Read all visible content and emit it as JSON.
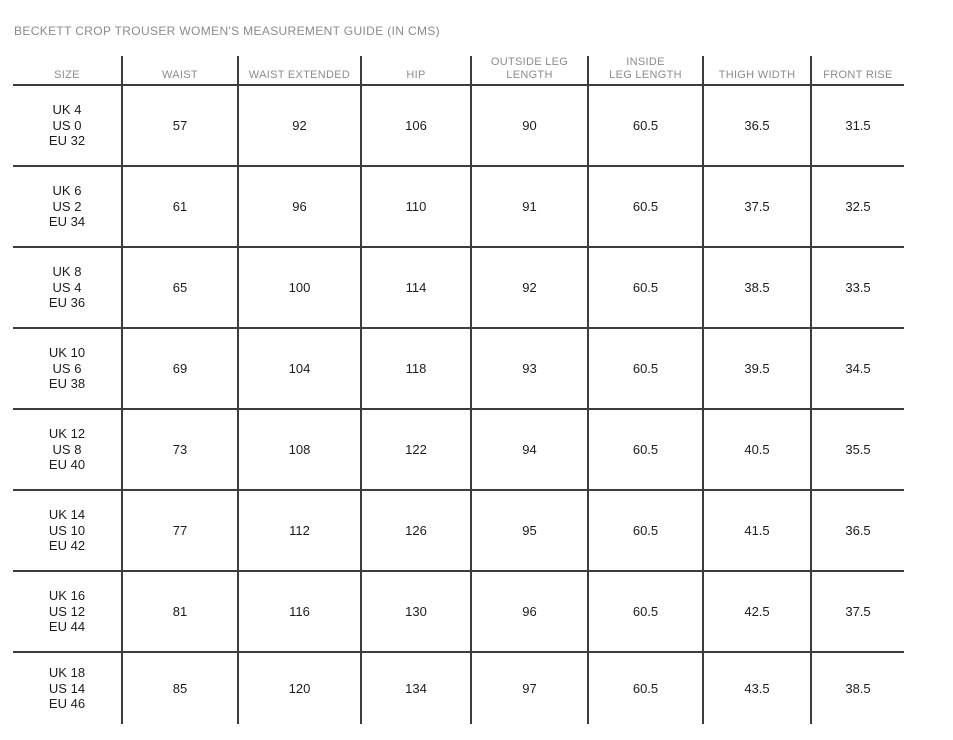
{
  "page": {
    "title": "BECKETT CROP TROUSER WOMEN'S MEASUREMENT GUIDE (IN CMS)"
  },
  "table": {
    "headers": [
      "SIZE",
      "WAIST",
      "WAIST EXTENDED",
      "HIP",
      "OUTSIDE LEG\nLENGTH",
      "INSIDE\nLEG LENGTH",
      "THIGH WIDTH",
      "FRONT RISE"
    ],
    "rows": [
      {
        "size": [
          "UK 4",
          "US 0",
          "EU 32"
        ],
        "values": [
          "57",
          "92",
          "106",
          "90",
          "60.5",
          "36.5",
          "31.5"
        ]
      },
      {
        "size": [
          "UK 6",
          "US 2",
          "EU 34"
        ],
        "values": [
          "61",
          "96",
          "110",
          "91",
          "60.5",
          "37.5",
          "32.5"
        ]
      },
      {
        "size": [
          "UK 8",
          "US 4",
          "EU 36"
        ],
        "values": [
          "65",
          "100",
          "114",
          "92",
          "60.5",
          "38.5",
          "33.5"
        ]
      },
      {
        "size": [
          "UK 10",
          "US 6",
          "EU 38"
        ],
        "values": [
          "69",
          "104",
          "118",
          "93",
          "60.5",
          "39.5",
          "34.5"
        ]
      },
      {
        "size": [
          "UK 12",
          "US 8",
          "EU 40"
        ],
        "values": [
          "73",
          "108",
          "122",
          "94",
          "60.5",
          "40.5",
          "35.5"
        ]
      },
      {
        "size": [
          "UK 14",
          "US 10",
          "EU 42"
        ],
        "values": [
          "77",
          "112",
          "126",
          "95",
          "60.5",
          "41.5",
          "36.5"
        ]
      },
      {
        "size": [
          "UK 16",
          "US 12",
          "EU 44"
        ],
        "values": [
          "81",
          "116",
          "130",
          "96",
          "60.5",
          "42.5",
          "37.5"
        ]
      },
      {
        "size": [
          "UK 18",
          "US 14",
          "EU 46"
        ],
        "values": [
          "85",
          "120",
          "134",
          "97",
          "60.5",
          "43.5",
          "38.5"
        ]
      }
    ]
  },
  "colors": {
    "background": "#ffffff",
    "title_text": "#8b8b8b",
    "header_text": "#8c8c8c",
    "data_text": "#1c1c1c",
    "grid_line": "#3c3c3c"
  }
}
